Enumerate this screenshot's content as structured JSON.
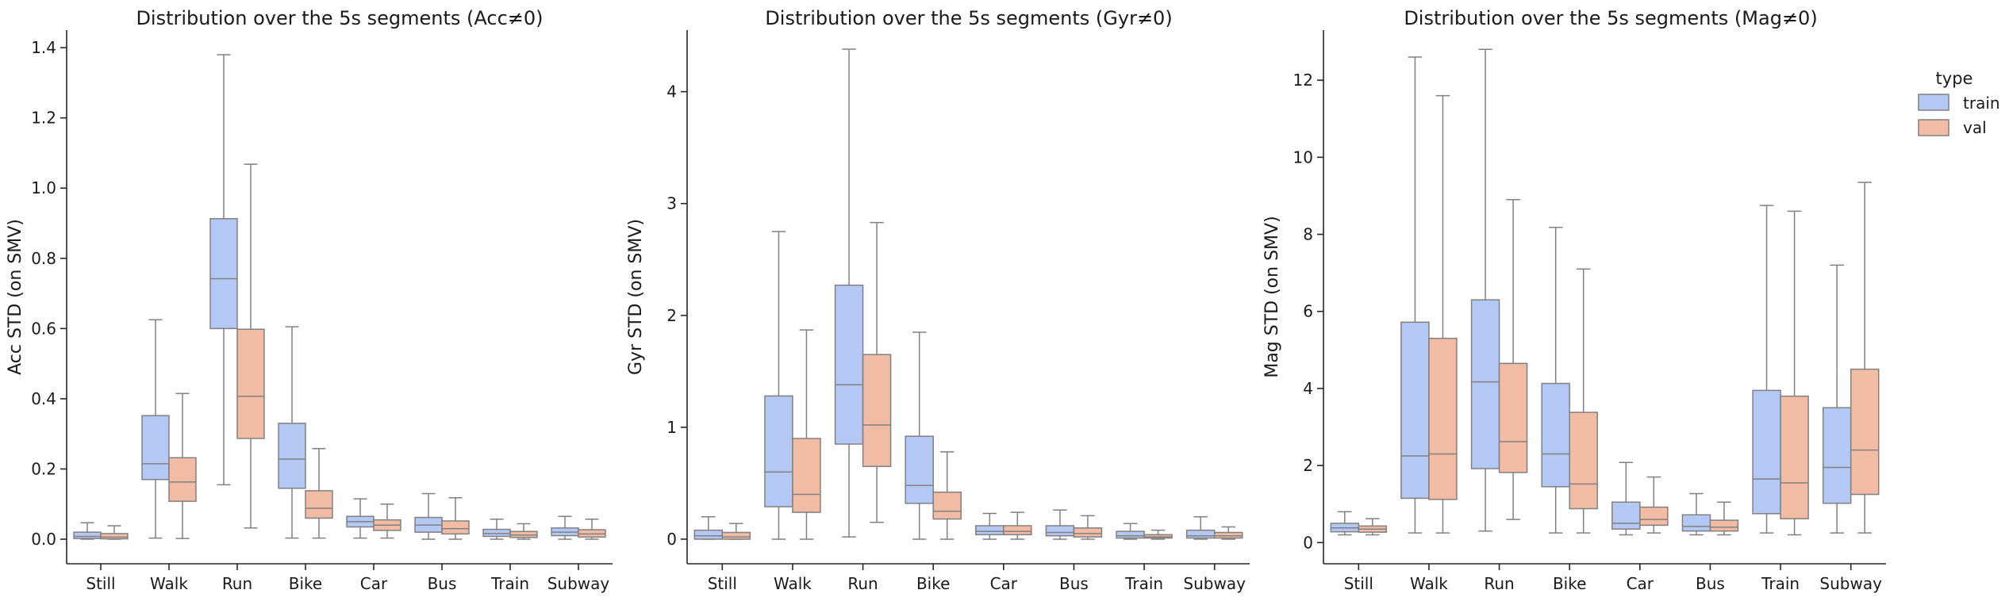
{
  "colors": {
    "train": "#b4c8f5",
    "val": "#f2bba3",
    "edge": "#808080",
    "axis": "#262626"
  },
  "legend": {
    "title": "type",
    "entries": [
      "train",
      "val"
    ]
  },
  "chart_data": [
    {
      "type": "box",
      "title": "Distribution over the 5s segments (Acc≠0)",
      "ylabel": "Acc STD (on SMV)",
      "ylim": [
        -0.07,
        1.45
      ],
      "yticks": [
        0.0,
        0.2,
        0.4,
        0.6,
        0.8,
        1.0,
        1.2,
        1.4
      ],
      "ytick_labels": [
        "0.0",
        "0.2",
        "0.4",
        "0.6",
        "0.8",
        "1.0",
        "1.2",
        "1.4"
      ],
      "categories": [
        "Still",
        "Walk",
        "Run",
        "Bike",
        "Car",
        "Bus",
        "Train",
        "Subway"
      ],
      "series": [
        {
          "name": "train",
          "boxes": [
            {
              "whislo": 0.0,
              "q1": 0.002,
              "med": 0.008,
              "q3": 0.02,
              "whishi": 0.047
            },
            {
              "whislo": 0.003,
              "q1": 0.17,
              "med": 0.215,
              "q3": 0.352,
              "whishi": 0.625
            },
            {
              "whislo": 0.155,
              "q1": 0.6,
              "med": 0.742,
              "q3": 0.913,
              "whishi": 1.38
            },
            {
              "whislo": 0.003,
              "q1": 0.145,
              "med": 0.228,
              "q3": 0.33,
              "whishi": 0.605
            },
            {
              "whislo": 0.003,
              "q1": 0.035,
              "med": 0.05,
              "q3": 0.065,
              "whishi": 0.115
            },
            {
              "whislo": 0.0,
              "q1": 0.02,
              "med": 0.04,
              "q3": 0.062,
              "whishi": 0.13
            },
            {
              "whislo": 0.0,
              "q1": 0.008,
              "med": 0.016,
              "q3": 0.028,
              "whishi": 0.057
            },
            {
              "whislo": 0.0,
              "q1": 0.01,
              "med": 0.02,
              "q3": 0.032,
              "whishi": 0.065
            }
          ]
        },
        {
          "name": "val",
          "boxes": [
            {
              "whislo": 0.0,
              "q1": 0.001,
              "med": 0.006,
              "q3": 0.016,
              "whishi": 0.038
            },
            {
              "whislo": 0.002,
              "q1": 0.108,
              "med": 0.163,
              "q3": 0.232,
              "whishi": 0.415
            },
            {
              "whislo": 0.032,
              "q1": 0.287,
              "med": 0.407,
              "q3": 0.598,
              "whishi": 1.068
            },
            {
              "whislo": 0.003,
              "q1": 0.06,
              "med": 0.088,
              "q3": 0.138,
              "whishi": 0.258
            },
            {
              "whislo": 0.003,
              "q1": 0.025,
              "med": 0.04,
              "q3": 0.055,
              "whishi": 0.1
            },
            {
              "whislo": 0.0,
              "q1": 0.015,
              "med": 0.03,
              "q3": 0.052,
              "whishi": 0.118
            },
            {
              "whislo": 0.0,
              "q1": 0.005,
              "med": 0.012,
              "q3": 0.022,
              "whishi": 0.044
            },
            {
              "whislo": 0.0,
              "q1": 0.006,
              "med": 0.015,
              "q3": 0.027,
              "whishi": 0.057
            }
          ]
        }
      ]
    },
    {
      "type": "box",
      "title": "Distribution over the 5s segments (Gyr≠0)",
      "ylabel": "Gyr STD (on SMV)",
      "ylim": [
        -0.22,
        4.55
      ],
      "yticks": [
        0,
        1,
        2,
        3,
        4
      ],
      "ytick_labels": [
        "0",
        "1",
        "2",
        "3",
        "4"
      ],
      "categories": [
        "Still",
        "Walk",
        "Run",
        "Bike",
        "Car",
        "Bus",
        "Train",
        "Subway"
      ],
      "series": [
        {
          "name": "train",
          "boxes": [
            {
              "whislo": 0.0,
              "q1": 0.0,
              "med": 0.03,
              "q3": 0.08,
              "whishi": 0.2
            },
            {
              "whislo": 0.0,
              "q1": 0.29,
              "med": 0.6,
              "q3": 1.28,
              "whishi": 2.75
            },
            {
              "whislo": 0.02,
              "q1": 0.85,
              "med": 1.38,
              "q3": 2.27,
              "whishi": 4.38
            },
            {
              "whislo": 0.0,
              "q1": 0.32,
              "med": 0.48,
              "q3": 0.92,
              "whishi": 1.85
            },
            {
              "whislo": 0.0,
              "q1": 0.04,
              "med": 0.07,
              "q3": 0.12,
              "whishi": 0.23
            },
            {
              "whislo": 0.0,
              "q1": 0.03,
              "med": 0.06,
              "q3": 0.12,
              "whishi": 0.26
            },
            {
              "whislo": 0.0,
              "q1": 0.01,
              "med": 0.03,
              "q3": 0.07,
              "whishi": 0.14
            },
            {
              "whislo": 0.0,
              "q1": 0.01,
              "med": 0.03,
              "q3": 0.08,
              "whishi": 0.2
            }
          ]
        },
        {
          "name": "val",
          "boxes": [
            {
              "whislo": 0.0,
              "q1": 0.0,
              "med": 0.02,
              "q3": 0.06,
              "whishi": 0.14
            },
            {
              "whislo": 0.0,
              "q1": 0.24,
              "med": 0.4,
              "q3": 0.9,
              "whishi": 1.87
            },
            {
              "whislo": 0.15,
              "q1": 0.65,
              "med": 1.02,
              "q3": 1.65,
              "whishi": 2.83
            },
            {
              "whislo": 0.0,
              "q1": 0.18,
              "med": 0.25,
              "q3": 0.42,
              "whishi": 0.78
            },
            {
              "whislo": 0.0,
              "q1": 0.04,
              "med": 0.07,
              "q3": 0.12,
              "whishi": 0.24
            },
            {
              "whislo": 0.0,
              "q1": 0.02,
              "med": 0.05,
              "q3": 0.1,
              "whishi": 0.21
            },
            {
              "whislo": 0.0,
              "q1": 0.01,
              "med": 0.02,
              "q3": 0.04,
              "whishi": 0.08
            },
            {
              "whislo": 0.0,
              "q1": 0.01,
              "med": 0.03,
              "q3": 0.06,
              "whishi": 0.11
            }
          ]
        }
      ]
    },
    {
      "type": "box",
      "title": "Distribution over the 5s segments (Mag≠0)",
      "ylabel": "Mag STD (on SMV)",
      "ylim": [
        -0.55,
        13.3
      ],
      "yticks": [
        0,
        2,
        4,
        6,
        8,
        10,
        12
      ],
      "ytick_labels": [
        "0",
        "2",
        "4",
        "6",
        "8",
        "10",
        "12"
      ],
      "categories": [
        "Still",
        "Walk",
        "Run",
        "Bike",
        "Car",
        "Bus",
        "Train",
        "Subway"
      ],
      "series": [
        {
          "name": "train",
          "boxes": [
            {
              "whislo": 0.2,
              "q1": 0.28,
              "med": 0.38,
              "q3": 0.5,
              "whishi": 0.8
            },
            {
              "whislo": 0.25,
              "q1": 1.15,
              "med": 2.25,
              "q3": 5.72,
              "whishi": 12.6
            },
            {
              "whislo": 0.3,
              "q1": 1.92,
              "med": 4.17,
              "q3": 6.3,
              "whishi": 12.8
            },
            {
              "whislo": 0.25,
              "q1": 1.45,
              "med": 2.3,
              "q3": 4.13,
              "whishi": 8.18
            },
            {
              "whislo": 0.2,
              "q1": 0.35,
              "med": 0.5,
              "q3": 1.05,
              "whishi": 2.08
            },
            {
              "whislo": 0.2,
              "q1": 0.3,
              "med": 0.42,
              "q3": 0.72,
              "whishi": 1.27
            },
            {
              "whislo": 0.25,
              "q1": 0.75,
              "med": 1.65,
              "q3": 3.95,
              "whishi": 8.75
            },
            {
              "whislo": 0.25,
              "q1": 1.02,
              "med": 1.95,
              "q3": 3.5,
              "whishi": 7.2
            }
          ]
        },
        {
          "name": "val",
          "boxes": [
            {
              "whislo": 0.2,
              "q1": 0.27,
              "med": 0.35,
              "q3": 0.43,
              "whishi": 0.62
            },
            {
              "whislo": 0.25,
              "q1": 1.12,
              "med": 2.3,
              "q3": 5.3,
              "whishi": 11.6
            },
            {
              "whislo": 0.6,
              "q1": 1.82,
              "med": 2.62,
              "q3": 4.65,
              "whishi": 8.9
            },
            {
              "whislo": 0.25,
              "q1": 0.88,
              "med": 1.52,
              "q3": 3.38,
              "whishi": 7.1
            },
            {
              "whislo": 0.25,
              "q1": 0.45,
              "med": 0.6,
              "q3": 0.92,
              "whishi": 1.7
            },
            {
              "whislo": 0.2,
              "q1": 0.3,
              "med": 0.4,
              "q3": 0.58,
              "whishi": 1.05
            },
            {
              "whislo": 0.2,
              "q1": 0.62,
              "med": 1.55,
              "q3": 3.8,
              "whishi": 8.6
            },
            {
              "whislo": 0.25,
              "q1": 1.25,
              "med": 2.4,
              "q3": 4.5,
              "whishi": 9.35
            }
          ]
        }
      ]
    }
  ]
}
